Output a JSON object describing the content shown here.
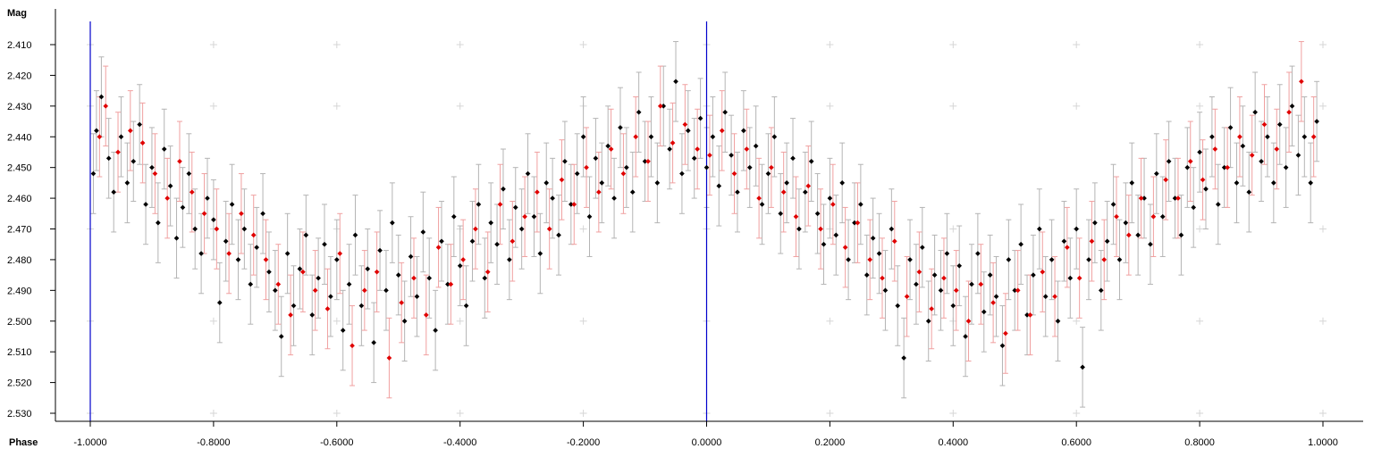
{
  "chart_data": {
    "type": "scatter",
    "title": "",
    "ylabel": "Mag",
    "xlabel": "Phase",
    "xlim": [
      -1.0,
      1.0
    ],
    "ylim": [
      2.405,
      2.532
    ],
    "y_inverted": true,
    "x_ticks": [
      "-1.0000",
      "-0.8000",
      "-0.6000",
      "-0.4000",
      "-0.2000",
      "0.0000",
      "0.2000",
      "0.4000",
      "0.6000",
      "0.8000",
      "1.0000"
    ],
    "x_tick_values": [
      -1.0,
      -0.8,
      -0.6,
      -0.4,
      -0.2,
      0.0,
      0.2,
      0.4,
      0.6,
      0.8,
      1.0
    ],
    "y_ticks": [
      "2.410",
      "2.420",
      "2.430",
      "2.440",
      "2.450",
      "2.460",
      "2.470",
      "2.480",
      "2.490",
      "2.500",
      "2.510",
      "2.520",
      "2.530"
    ],
    "y_tick_values": [
      2.41,
      2.42,
      2.43,
      2.44,
      2.45,
      2.46,
      2.47,
      2.48,
      2.49,
      2.5,
      2.51,
      2.52,
      2.53
    ],
    "vertical_markers": [
      -1.0,
      0.0
    ],
    "grid": "plus-markers",
    "error_bar_typical": 0.013,
    "series": [
      {
        "color": "#000000",
        "errorbar_color": "#b4b4b4",
        "points": [
          [
            -0.995,
            2.452
          ],
          [
            -0.99,
            2.438
          ],
          [
            -0.982,
            2.427
          ],
          [
            -0.97,
            2.447
          ],
          [
            -0.962,
            2.458
          ],
          [
            -0.95,
            2.44
          ],
          [
            -0.94,
            2.455
          ],
          [
            -0.93,
            2.448
          ],
          [
            -0.92,
            2.436
          ],
          [
            -0.91,
            2.462
          ],
          [
            -0.9,
            2.45
          ],
          [
            -0.89,
            2.468
          ],
          [
            -0.88,
            2.444
          ],
          [
            -0.87,
            2.456
          ],
          [
            -0.86,
            2.473
          ],
          [
            -0.85,
            2.463
          ],
          [
            -0.84,
            2.452
          ],
          [
            -0.83,
            2.47
          ],
          [
            -0.82,
            2.478
          ],
          [
            -0.81,
            2.46
          ],
          [
            -0.8,
            2.467
          ],
          [
            -0.79,
            2.494
          ],
          [
            -0.78,
            2.474
          ],
          [
            -0.77,
            2.462
          ],
          [
            -0.76,
            2.48
          ],
          [
            -0.75,
            2.47
          ],
          [
            -0.74,
            2.488
          ],
          [
            -0.73,
            2.476
          ],
          [
            -0.72,
            2.465
          ],
          [
            -0.71,
            2.484
          ],
          [
            -0.7,
            2.49
          ],
          [
            -0.69,
            2.505
          ],
          [
            -0.68,
            2.478
          ],
          [
            -0.67,
            2.495
          ],
          [
            -0.66,
            2.483
          ],
          [
            -0.65,
            2.472
          ],
          [
            -0.64,
            2.498
          ],
          [
            -0.63,
            2.486
          ],
          [
            -0.62,
            2.475
          ],
          [
            -0.61,
            2.492
          ],
          [
            -0.6,
            2.48
          ],
          [
            -0.59,
            2.503
          ],
          [
            -0.58,
            2.488
          ],
          [
            -0.57,
            2.472
          ],
          [
            -0.56,
            2.495
          ],
          [
            -0.55,
            2.483
          ],
          [
            -0.54,
            2.507
          ],
          [
            -0.53,
            2.477
          ],
          [
            -0.52,
            2.49
          ],
          [
            -0.51,
            2.468
          ],
          [
            -0.5,
            2.485
          ],
          [
            -0.49,
            2.5
          ],
          [
            -0.48,
            2.479
          ],
          [
            -0.47,
            2.492
          ],
          [
            -0.46,
            2.471
          ],
          [
            -0.45,
            2.486
          ],
          [
            -0.44,
            2.503
          ],
          [
            -0.43,
            2.474
          ],
          [
            -0.42,
            2.488
          ],
          [
            -0.41,
            2.466
          ],
          [
            -0.4,
            2.482
          ],
          [
            -0.39,
            2.495
          ],
          [
            -0.38,
            2.474
          ],
          [
            -0.37,
            2.462
          ],
          [
            -0.36,
            2.486
          ],
          [
            -0.35,
            2.468
          ],
          [
            -0.34,
            2.475
          ],
          [
            -0.33,
            2.457
          ],
          [
            -0.32,
            2.48
          ],
          [
            -0.31,
            2.463
          ],
          [
            -0.3,
            2.47
          ],
          [
            -0.29,
            2.452
          ],
          [
            -0.28,
            2.466
          ],
          [
            -0.27,
            2.478
          ],
          [
            -0.26,
            2.455
          ],
          [
            -0.25,
            2.46
          ],
          [
            -0.24,
            2.472
          ],
          [
            -0.23,
            2.448
          ],
          [
            -0.22,
            2.462
          ],
          [
            -0.21,
            2.452
          ],
          [
            -0.2,
            2.44
          ],
          [
            -0.19,
            2.466
          ],
          [
            -0.18,
            2.447
          ],
          [
            -0.17,
            2.455
          ],
          [
            -0.16,
            2.443
          ],
          [
            -0.15,
            2.46
          ],
          [
            -0.14,
            2.437
          ],
          [
            -0.13,
            2.45
          ],
          [
            -0.12,
            2.458
          ],
          [
            -0.11,
            2.432
          ],
          [
            -0.1,
            2.448
          ],
          [
            -0.09,
            2.44
          ],
          [
            -0.08,
            2.455
          ],
          [
            -0.07,
            2.43
          ],
          [
            -0.06,
            2.444
          ],
          [
            -0.05,
            2.422
          ],
          [
            -0.04,
            2.452
          ],
          [
            -0.03,
            2.438
          ],
          [
            -0.02,
            2.447
          ],
          [
            -0.01,
            2.434
          ],
          [
            0.0,
            2.45
          ],
          [
            0.01,
            2.44
          ],
          [
            0.02,
            2.456
          ],
          [
            0.03,
            2.432
          ],
          [
            0.04,
            2.446
          ],
          [
            0.05,
            2.458
          ],
          [
            0.06,
            2.438
          ],
          [
            0.07,
            2.45
          ],
          [
            0.08,
            2.443
          ],
          [
            0.09,
            2.462
          ],
          [
            0.1,
            2.452
          ],
          [
            0.11,
            2.44
          ],
          [
            0.12,
            2.465
          ],
          [
            0.13,
            2.455
          ],
          [
            0.14,
            2.447
          ],
          [
            0.15,
            2.47
          ],
          [
            0.16,
            2.458
          ],
          [
            0.17,
            2.448
          ],
          [
            0.18,
            2.465
          ],
          [
            0.19,
            2.475
          ],
          [
            0.2,
            2.46
          ],
          [
            0.21,
            2.472
          ],
          [
            0.22,
            2.455
          ],
          [
            0.23,
            2.48
          ],
          [
            0.24,
            2.468
          ],
          [
            0.25,
            2.462
          ],
          [
            0.26,
            2.485
          ],
          [
            0.27,
            2.473
          ],
          [
            0.28,
            2.478
          ],
          [
            0.29,
            2.49
          ],
          [
            0.3,
            2.47
          ],
          [
            0.31,
            2.495
          ],
          [
            0.32,
            2.512
          ],
          [
            0.33,
            2.48
          ],
          [
            0.34,
            2.488
          ],
          [
            0.35,
            2.476
          ],
          [
            0.36,
            2.5
          ],
          [
            0.37,
            2.485
          ],
          [
            0.38,
            2.49
          ],
          [
            0.39,
            2.478
          ],
          [
            0.4,
            2.495
          ],
          [
            0.41,
            2.482
          ],
          [
            0.42,
            2.505
          ],
          [
            0.43,
            2.488
          ],
          [
            0.44,
            2.478
          ],
          [
            0.45,
            2.497
          ],
          [
            0.46,
            2.485
          ],
          [
            0.47,
            2.492
          ],
          [
            0.48,
            2.508
          ],
          [
            0.49,
            2.48
          ],
          [
            0.5,
            2.49
          ],
          [
            0.51,
            2.475
          ],
          [
            0.52,
            2.498
          ],
          [
            0.53,
            2.485
          ],
          [
            0.54,
            2.47
          ],
          [
            0.55,
            2.492
          ],
          [
            0.56,
            2.48
          ],
          [
            0.57,
            2.5
          ],
          [
            0.58,
            2.474
          ],
          [
            0.59,
            2.486
          ],
          [
            0.6,
            2.47
          ],
          [
            0.61,
            2.515
          ],
          [
            0.62,
            2.48
          ],
          [
            0.63,
            2.468
          ],
          [
            0.64,
            2.49
          ],
          [
            0.65,
            2.474
          ],
          [
            0.66,
            2.462
          ],
          [
            0.67,
            2.48
          ],
          [
            0.68,
            2.468
          ],
          [
            0.69,
            2.455
          ],
          [
            0.7,
            2.472
          ],
          [
            0.71,
            2.46
          ],
          [
            0.72,
            2.475
          ],
          [
            0.73,
            2.452
          ],
          [
            0.74,
            2.466
          ],
          [
            0.75,
            2.448
          ],
          [
            0.76,
            2.46
          ],
          [
            0.77,
            2.472
          ],
          [
            0.78,
            2.45
          ],
          [
            0.79,
            2.463
          ],
          [
            0.8,
            2.445
          ],
          [
            0.81,
            2.457
          ],
          [
            0.82,
            2.44
          ],
          [
            0.83,
            2.462
          ],
          [
            0.84,
            2.45
          ],
          [
            0.85,
            2.437
          ],
          [
            0.86,
            2.455
          ],
          [
            0.87,
            2.443
          ],
          [
            0.88,
            2.458
          ],
          [
            0.89,
            2.432
          ],
          [
            0.9,
            2.448
          ],
          [
            0.91,
            2.44
          ],
          [
            0.92,
            2.455
          ],
          [
            0.93,
            2.436
          ],
          [
            0.94,
            2.45
          ],
          [
            0.95,
            2.43
          ],
          [
            0.96,
            2.446
          ],
          [
            0.97,
            2.44
          ],
          [
            0.98,
            2.455
          ],
          [
            0.99,
            2.435
          ]
        ]
      },
      {
        "color": "#e00000",
        "errorbar_color": "#f0a0a0",
        "points": [
          [
            -0.985,
            2.44
          ],
          [
            -0.975,
            2.43
          ],
          [
            -0.955,
            2.445
          ],
          [
            -0.935,
            2.438
          ],
          [
            -0.915,
            2.442
          ],
          [
            -0.895,
            2.452
          ],
          [
            -0.875,
            2.46
          ],
          [
            -0.855,
            2.448
          ],
          [
            -0.835,
            2.458
          ],
          [
            -0.815,
            2.465
          ],
          [
            -0.795,
            2.47
          ],
          [
            -0.775,
            2.478
          ],
          [
            -0.755,
            2.465
          ],
          [
            -0.735,
            2.472
          ],
          [
            -0.715,
            2.48
          ],
          [
            -0.695,
            2.488
          ],
          [
            -0.675,
            2.498
          ],
          [
            -0.655,
            2.484
          ],
          [
            -0.635,
            2.49
          ],
          [
            -0.615,
            2.496
          ],
          [
            -0.595,
            2.478
          ],
          [
            -0.575,
            2.508
          ],
          [
            -0.555,
            2.49
          ],
          [
            -0.535,
            2.484
          ],
          [
            -0.515,
            2.512
          ],
          [
            -0.495,
            2.494
          ],
          [
            -0.475,
            2.486
          ],
          [
            -0.455,
            2.498
          ],
          [
            -0.435,
            2.476
          ],
          [
            -0.415,
            2.488
          ],
          [
            -0.395,
            2.48
          ],
          [
            -0.375,
            2.47
          ],
          [
            -0.355,
            2.484
          ],
          [
            -0.335,
            2.462
          ],
          [
            -0.315,
            2.474
          ],
          [
            -0.295,
            2.466
          ],
          [
            -0.275,
            2.458
          ],
          [
            -0.255,
            2.47
          ],
          [
            -0.235,
            2.454
          ],
          [
            -0.215,
            2.462
          ],
          [
            -0.195,
            2.45
          ],
          [
            -0.175,
            2.458
          ],
          [
            -0.155,
            2.444
          ],
          [
            -0.135,
            2.452
          ],
          [
            -0.115,
            2.44
          ],
          [
            -0.095,
            2.448
          ],
          [
            -0.075,
            2.43
          ],
          [
            -0.055,
            2.442
          ],
          [
            -0.035,
            2.436
          ],
          [
            -0.015,
            2.444
          ],
          [
            0.005,
            2.446
          ],
          [
            0.025,
            2.438
          ],
          [
            0.045,
            2.452
          ],
          [
            0.065,
            2.444
          ],
          [
            0.085,
            2.46
          ],
          [
            0.105,
            2.45
          ],
          [
            0.125,
            2.458
          ],
          [
            0.145,
            2.466
          ],
          [
            0.165,
            2.456
          ],
          [
            0.185,
            2.47
          ],
          [
            0.205,
            2.462
          ],
          [
            0.225,
            2.476
          ],
          [
            0.245,
            2.468
          ],
          [
            0.265,
            2.48
          ],
          [
            0.285,
            2.486
          ],
          [
            0.305,
            2.474
          ],
          [
            0.325,
            2.492
          ],
          [
            0.345,
            2.484
          ],
          [
            0.365,
            2.496
          ],
          [
            0.385,
            2.486
          ],
          [
            0.405,
            2.49
          ],
          [
            0.425,
            2.5
          ],
          [
            0.445,
            2.488
          ],
          [
            0.465,
            2.494
          ],
          [
            0.485,
            2.504
          ],
          [
            0.505,
            2.49
          ],
          [
            0.525,
            2.498
          ],
          [
            0.545,
            2.484
          ],
          [
            0.565,
            2.492
          ],
          [
            0.585,
            2.476
          ],
          [
            0.605,
            2.486
          ],
          [
            0.625,
            2.474
          ],
          [
            0.645,
            2.48
          ],
          [
            0.665,
            2.466
          ],
          [
            0.685,
            2.472
          ],
          [
            0.705,
            2.46
          ],
          [
            0.725,
            2.466
          ],
          [
            0.745,
            2.454
          ],
          [
            0.765,
            2.46
          ],
          [
            0.785,
            2.448
          ],
          [
            0.805,
            2.454
          ],
          [
            0.825,
            2.444
          ],
          [
            0.845,
            2.45
          ],
          [
            0.865,
            2.44
          ],
          [
            0.885,
            2.446
          ],
          [
            0.905,
            2.436
          ],
          [
            0.925,
            2.444
          ],
          [
            0.945,
            2.432
          ],
          [
            0.965,
            2.422
          ],
          [
            0.985,
            2.44
          ]
        ]
      }
    ]
  }
}
